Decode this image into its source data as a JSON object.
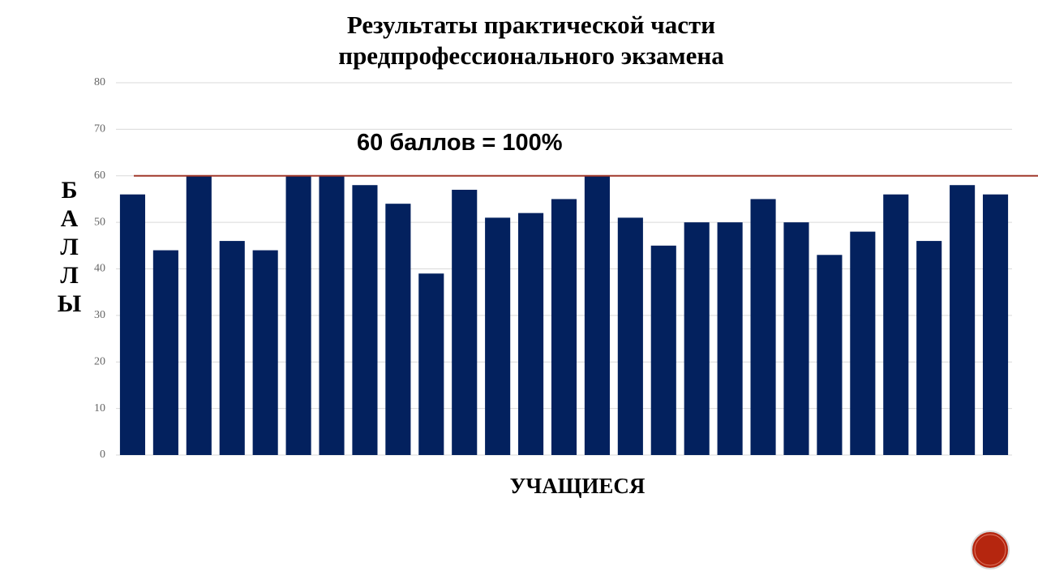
{
  "chart_data": {
    "type": "bar",
    "title": "Результаты практической части\nпредпрофессионального экзамена",
    "x_label": "УЧАЩИЕСЯ",
    "y_label": "БАЛЛЫ",
    "annotation": "60 баллов = 100%",
    "categories": [
      null,
      null,
      null,
      null,
      null,
      null,
      null,
      null,
      null,
      null,
      null,
      null,
      null,
      null,
      null,
      null,
      null,
      null,
      null,
      null,
      null,
      null,
      null,
      null,
      null,
      null,
      null
    ],
    "values": [
      56,
      44,
      60,
      46,
      44,
      60,
      60,
      58,
      54,
      39,
      57,
      51,
      52,
      55,
      60,
      51,
      45,
      50,
      50,
      55,
      50,
      43,
      48,
      56,
      46,
      58,
      56
    ],
    "color": "#03215e",
    "ylim": [
      0,
      80
    ],
    "yticks": [
      0,
      10,
      20,
      30,
      40,
      50,
      60,
      70,
      80
    ],
    "grid": true,
    "reference_line": {
      "value": 60,
      "color": "#a0392b"
    }
  }
}
